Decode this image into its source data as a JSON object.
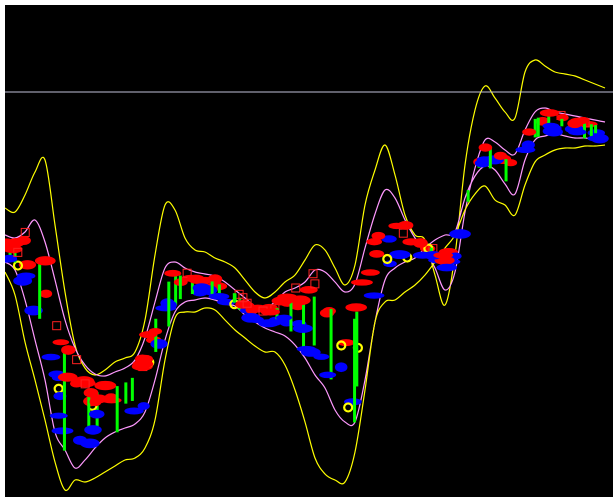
{
  "chart_data": {
    "type": "line",
    "x": [
      0,
      1,
      2,
      3,
      4,
      5,
      6,
      7,
      8,
      9,
      10,
      11,
      12,
      13,
      14,
      15,
      16,
      17,
      18,
      19,
      20,
      21,
      22,
      23,
      24,
      25,
      26,
      27,
      28,
      29,
      30,
      31,
      32,
      33,
      34,
      35,
      36,
      37,
      38,
      39,
      40,
      41,
      42,
      43,
      44,
      45,
      46,
      47,
      48,
      49,
      50,
      51,
      52,
      53,
      54,
      55,
      56,
      57,
      58,
      59,
      60
    ],
    "series": [
      {
        "role": "upper-outer-band",
        "color": "#ffff00",
        "values": [
          208,
          212,
          195,
          172,
          160,
          225,
          292,
          345,
          368,
          375,
          370,
          362,
          358,
          352,
          320,
          255,
          205,
          210,
          238,
          250,
          252,
          258,
          262,
          268,
          280,
          292,
          298,
          292,
          282,
          275,
          260,
          245,
          250,
          268,
          285,
          265,
          205,
          170,
          145,
          175,
          215,
          235,
          240,
          275,
          305,
          255,
          165,
          110,
          86,
          98,
          112,
          118,
          72,
          60,
          66,
          72,
          74,
          76,
          80,
          84,
          88
        ]
      },
      {
        "role": "upper-inner-band",
        "color": "#ff99ff",
        "values": [
          235,
          238,
          232,
          220,
          242,
          280,
          320,
          348,
          365,
          374,
          376,
          372,
          368,
          360,
          338,
          302,
          268,
          262,
          268,
          272,
          274,
          276,
          282,
          290,
          298,
          306,
          308,
          302,
          292,
          288,
          282,
          270,
          272,
          282,
          292,
          284,
          248,
          214,
          190,
          198,
          220,
          238,
          250,
          268,
          290,
          272,
          212,
          168,
          140,
          142,
          150,
          154,
          130,
          112,
          108,
          112,
          114,
          116,
          118,
          120,
          122
        ]
      },
      {
        "role": "lower-inner-band",
        "color": "#ff99ff",
        "values": [
          262,
          270,
          300,
          340,
          380,
          432,
          450,
          468,
          460,
          448,
          438,
          432,
          428,
          424,
          412,
          380,
          340,
          312,
          302,
          300,
          298,
          300,
          304,
          306,
          315,
          322,
          328,
          332,
          336,
          345,
          358,
          375,
          388,
          410,
          422,
          422,
          380,
          322,
          280,
          268,
          262,
          258,
          248,
          240,
          235,
          232,
          198,
          176,
          166,
          170,
          184,
          194,
          160,
          140,
          136,
          134,
          136,
          138,
          138,
          140,
          142
        ]
      },
      {
        "role": "lower-outer-band",
        "color": "#ffff00",
        "values": [
          272,
          295,
          342,
          380,
          420,
          462,
          490,
          480,
          482,
          478,
          472,
          466,
          460,
          458,
          448,
          420,
          360,
          318,
          312,
          312,
          308,
          310,
          320,
          330,
          338,
          346,
          352,
          352,
          365,
          390,
          422,
          458,
          474,
          480,
          482,
          452,
          390,
          322,
          302,
          300,
          292,
          285,
          275,
          262,
          248,
          235,
          210,
          194,
          186,
          200,
          205,
          215,
          185,
          162,
          155,
          150,
          148,
          148,
          146,
          146,
          145
        ]
      }
    ],
    "horizontal_line": {
      "color": "#c0c0d8",
      "y": 92
    },
    "title": "",
    "xlabel": "",
    "ylabel": "",
    "ylim": [
      497,
      0
    ],
    "grid": false,
    "background": "#000000"
  }
}
